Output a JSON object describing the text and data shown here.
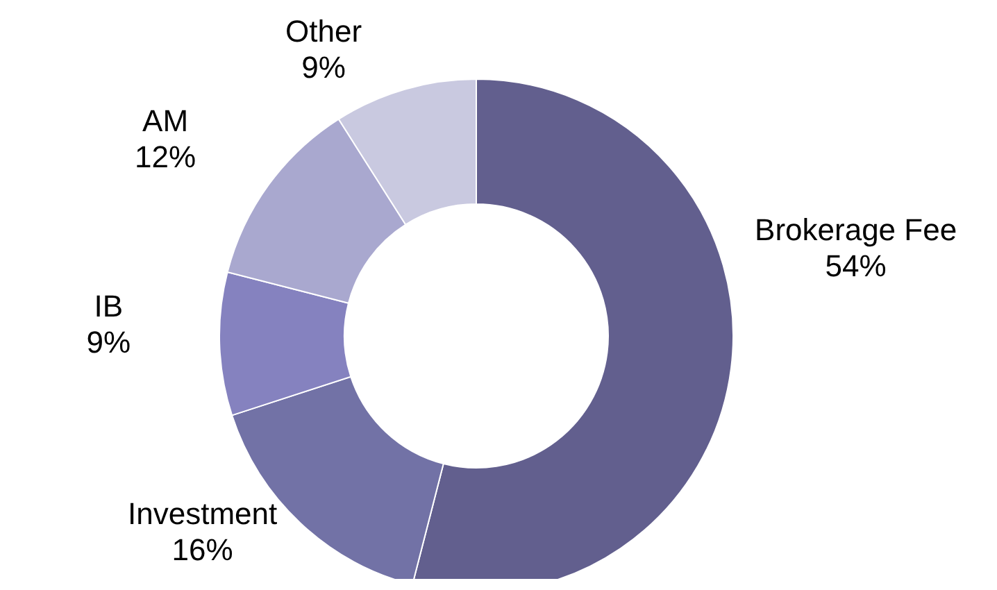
{
  "chart_data": {
    "type": "donut",
    "categories": [
      "Brokerage Fee",
      "Investment",
      "IB",
      "AM",
      "Other"
    ],
    "values": [
      54,
      16,
      9,
      12,
      9
    ],
    "colors": [
      "#625f8e",
      "#7272a6",
      "#8582bf",
      "#a9a8cf",
      "#c9c9e0"
    ],
    "value_labels": [
      "54%",
      "16%",
      "9%",
      "12%",
      "9%"
    ],
    "legend": false
  }
}
